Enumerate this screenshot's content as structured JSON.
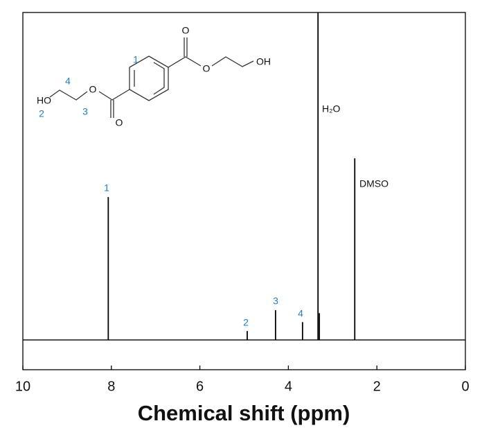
{
  "chart_data": {
    "type": "spectrum",
    "x_label": "Chemical shift (ppm)",
    "xlim": [
      10,
      0
    ],
    "xticks": [
      10,
      8,
      6,
      4,
      2,
      0
    ],
    "ylim": [
      -10,
      110
    ],
    "x": [
      8.07,
      4.93,
      4.29,
      3.68,
      3.33,
      3.3,
      2.5
    ],
    "values": [
      48,
      3,
      10,
      6,
      110,
      9,
      61
    ],
    "color": "#000000",
    "annotations": [
      "1",
      "2",
      "3",
      "4",
      "H₂O",
      "DMSO"
    ]
  },
  "structure": {
    "atoms": [
      "O",
      "O",
      "OH",
      "HO",
      "O",
      "O"
    ],
    "positions": [
      "1",
      "4",
      "2",
      "3"
    ]
  }
}
